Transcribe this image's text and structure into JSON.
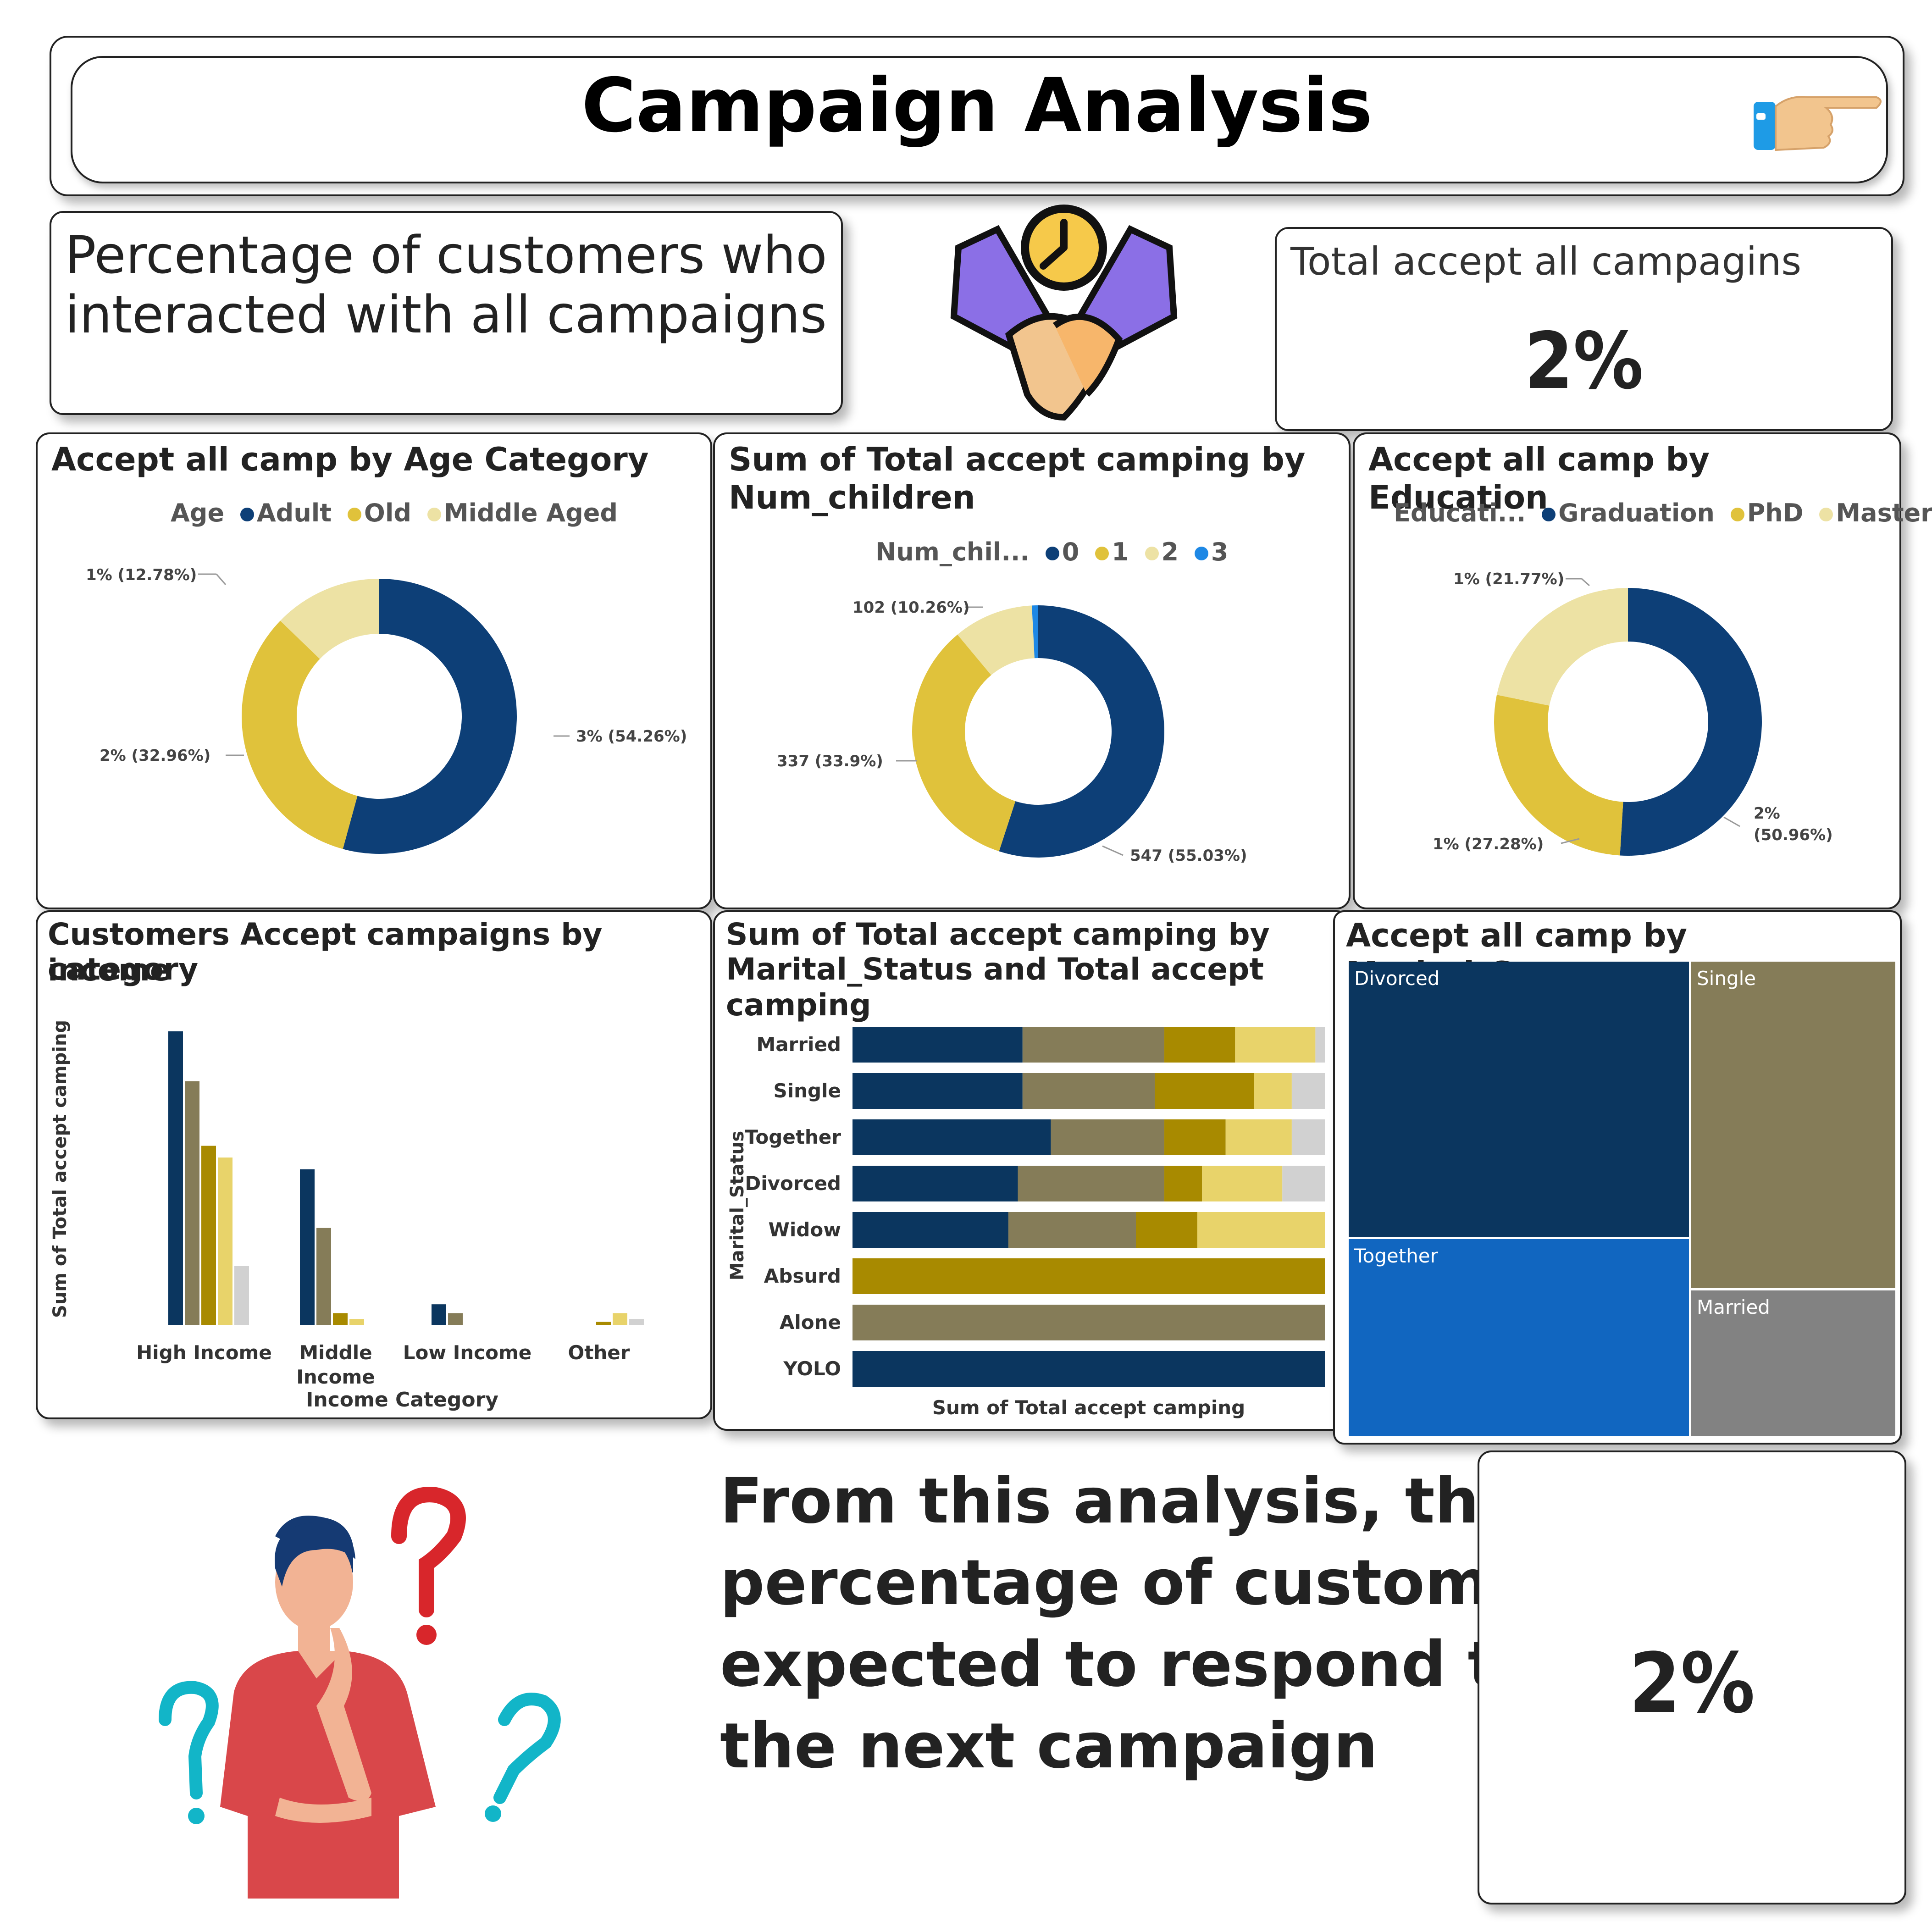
{
  "header": {
    "title": "Campaign Analysis",
    "pointer_icon": "pointing-hand-icon"
  },
  "intro": {
    "text_line1": "Percentage of customers who",
    "text_line2": "interacted with all campaigns",
    "handshake_icon": "handshake-clock-icon"
  },
  "kpi_total": {
    "label": "Total accept all campagins",
    "value": "2%"
  },
  "age_chart": {
    "title": "Accept all camp by Age Category",
    "legend_title": "Age",
    "legend": [
      "Adult",
      "Old",
      "Middle Aged"
    ],
    "labels": [
      "3% (54.26%)",
      "2% (32.96%)",
      "1% (12.78%)"
    ]
  },
  "children_chart": {
    "title_line1": "Sum of Total accept camping by",
    "title_line2": "Num_children",
    "legend_title": "Num_chil...",
    "legend": [
      "0",
      "1",
      "2",
      "3"
    ],
    "labels": [
      "547 (55.03%)",
      "337 (33.9%)",
      "102 (10.26%)"
    ]
  },
  "education_chart": {
    "title": "Accept all camp by Education",
    "legend_title": "Educati...",
    "legend": [
      "Graduation",
      "PhD",
      "Master"
    ],
    "labels": [
      "2%",
      "(50.96%)",
      "1% (27.28%)",
      "1% (21.77%)"
    ]
  },
  "income_chart": {
    "title_line1": "Customers Accept campaigns by income",
    "title_line2": "category",
    "ylabel": "Sum of Total accept camping",
    "xlabel": "Income Category",
    "categories": [
      "High Income",
      "Middle",
      "Income",
      "Low Income",
      "Other"
    ]
  },
  "marital_bar_chart": {
    "title_line1": "Sum of Total accept camping by",
    "title_line2": "Marital_Status and Total accept camping",
    "ylabel": "Marital_Status",
    "xlabel": "Sum of Total accept camping",
    "categories": [
      "Married",
      "Single",
      "Together",
      "Divorced",
      "Widow",
      "Absurd",
      "Alone",
      "YOLO"
    ]
  },
  "treemap": {
    "title": "Accept all camp by Marital_Status",
    "labels": [
      "Divorced",
      "Single",
      "Together",
      "Married"
    ]
  },
  "conclusion": {
    "line1": "From this analysis, the",
    "line2": "percentage of customers",
    "line3": "expected to respond to",
    "line4": "the next campaign",
    "value": "2%",
    "thinking_icon": "thinking-person-icon"
  },
  "colors": {
    "navy": "#0d3f77",
    "dark_navy": "#0b365f",
    "yellow": "#e0c23b",
    "light_yellow": "#ede2a4",
    "olive": "#857c58",
    "gold": "#a88a00",
    "pale": "#e8d36a",
    "grey": "#d1d1d1",
    "blue": "#1e88e5",
    "treemap_blue": "#1166c0",
    "treemap_grey": "#828282"
  },
  "chart_data": [
    {
      "type": "pie",
      "title": "Accept all camp by Age Category",
      "categories": [
        "Adult",
        "Old",
        "Middle Aged"
      ],
      "values": [
        54.26,
        32.96,
        12.78
      ]
    },
    {
      "type": "pie",
      "title": "Sum of Total accept camping by Num_children",
      "categories": [
        "0",
        "1",
        "2",
        "3"
      ],
      "values": [
        547,
        337,
        102,
        8
      ]
    },
    {
      "type": "pie",
      "title": "Accept all camp by Education",
      "categories": [
        "Graduation",
        "PhD",
        "Master"
      ],
      "values": [
        50.96,
        27.28,
        21.77
      ]
    },
    {
      "type": "bar",
      "title": "Customers Accept campaigns by income category",
      "xlabel": "Income Category",
      "ylabel": "Sum of Total accept camping",
      "categories": [
        "High Income",
        "Middle Income",
        "Low Income",
        "Other"
      ],
      "series": [
        {
          "values": [
            100,
            53,
            7,
            0
          ]
        },
        {
          "values": [
            83,
            33,
            4,
            0
          ]
        },
        {
          "values": [
            61,
            4,
            0,
            1
          ]
        },
        {
          "values": [
            57,
            2,
            0,
            4
          ]
        },
        {
          "values": [
            20,
            0,
            0,
            2
          ]
        }
      ]
    },
    {
      "type": "bar",
      "title": "Sum of Total accept camping by Marital_Status and Total accept camping",
      "xlabel": "Sum of Total accept camping",
      "ylabel": "Marital_Status",
      "categories": [
        "Married",
        "Single",
        "Together",
        "Divorced",
        "Widow",
        "Absurd",
        "Alone",
        "YOLO"
      ],
      "series": [
        {
          "values": [
            36,
            36,
            42,
            35,
            33,
            0,
            0,
            100
          ]
        },
        {
          "values": [
            30,
            28,
            24,
            31,
            27,
            0,
            100,
            0
          ]
        },
        {
          "values": [
            15,
            21,
            13,
            8,
            13,
            100,
            0,
            0
          ]
        },
        {
          "values": [
            17,
            8,
            14,
            17,
            27,
            0,
            0,
            0
          ]
        },
        {
          "values": [
            2,
            7,
            7,
            9,
            0,
            0,
            0,
            0
          ]
        }
      ]
    },
    {
      "type": "heatmap",
      "title": "Accept all camp by Marital_Status",
      "categories": [
        "Divorced",
        "Together",
        "Single",
        "Married"
      ],
      "values": [
        37,
        27,
        23,
        13
      ]
    }
  ]
}
